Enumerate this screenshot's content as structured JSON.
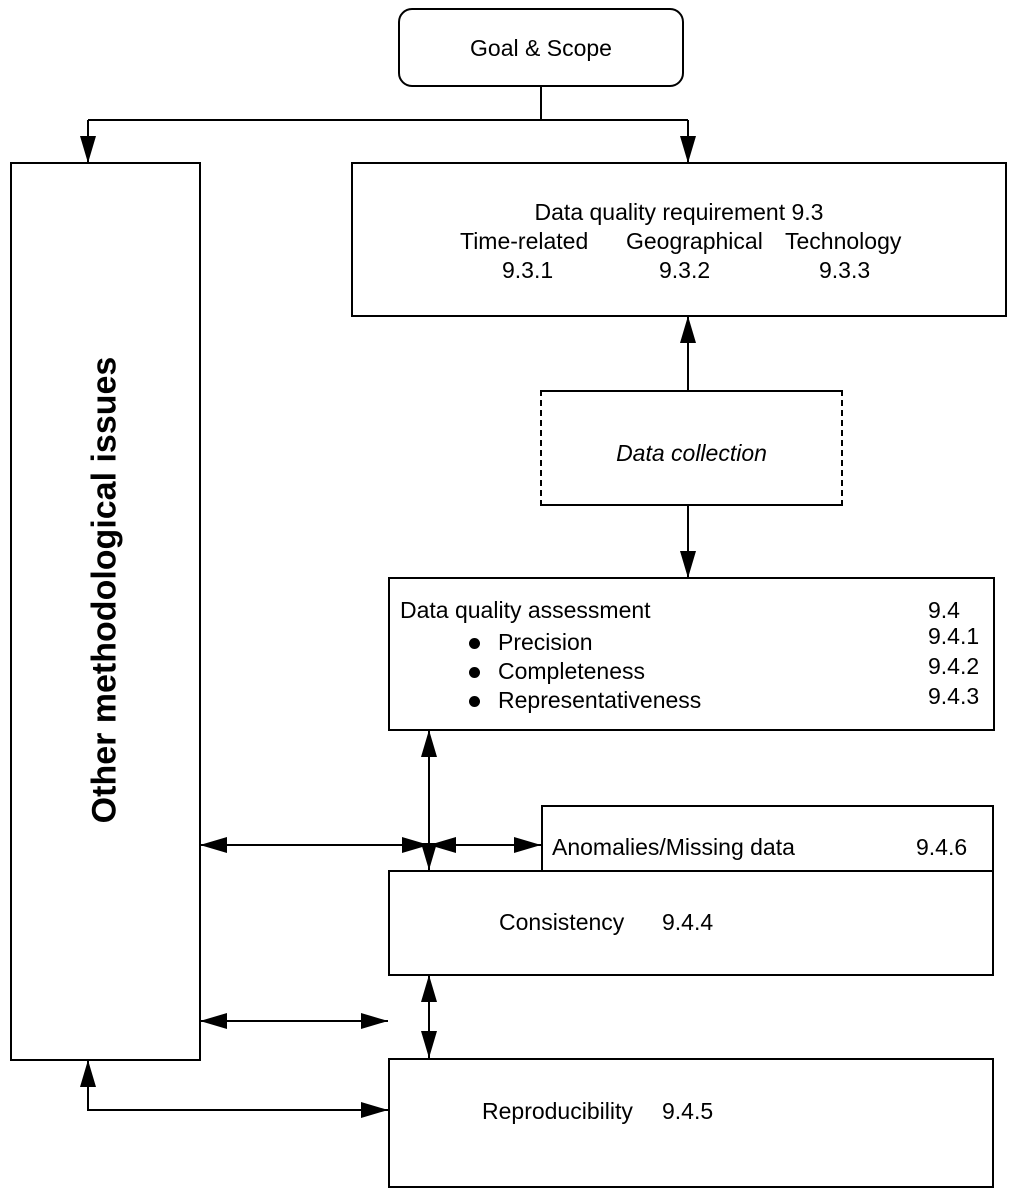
{
  "goal_scope": {
    "label": "Goal & Scope"
  },
  "requirement": {
    "title": "Data quality requirement 9.3",
    "categories": [
      "Time-related",
      "Geographical",
      "Technology"
    ],
    "codes": [
      "9.3.1",
      "9.3.2",
      "9.3.3"
    ]
  },
  "collection": {
    "label": "Data collection"
  },
  "assessment": {
    "title": "Data quality assessment",
    "code": "9.4",
    "items": [
      {
        "label": "Precision",
        "code": "9.4.1"
      },
      {
        "label": "Completeness",
        "code": "9.4.2"
      },
      {
        "label": "Representativeness",
        "code": "9.4.3"
      }
    ]
  },
  "anomalies": {
    "label": "Anomalies/Missing data",
    "code": "9.4.6"
  },
  "consistency": {
    "label": "Consistency",
    "code": "9.4.4"
  },
  "reproducibility": {
    "label": "Reproducibility",
    "code": "9.4.5"
  },
  "other": {
    "label": "Other methodological issues"
  }
}
